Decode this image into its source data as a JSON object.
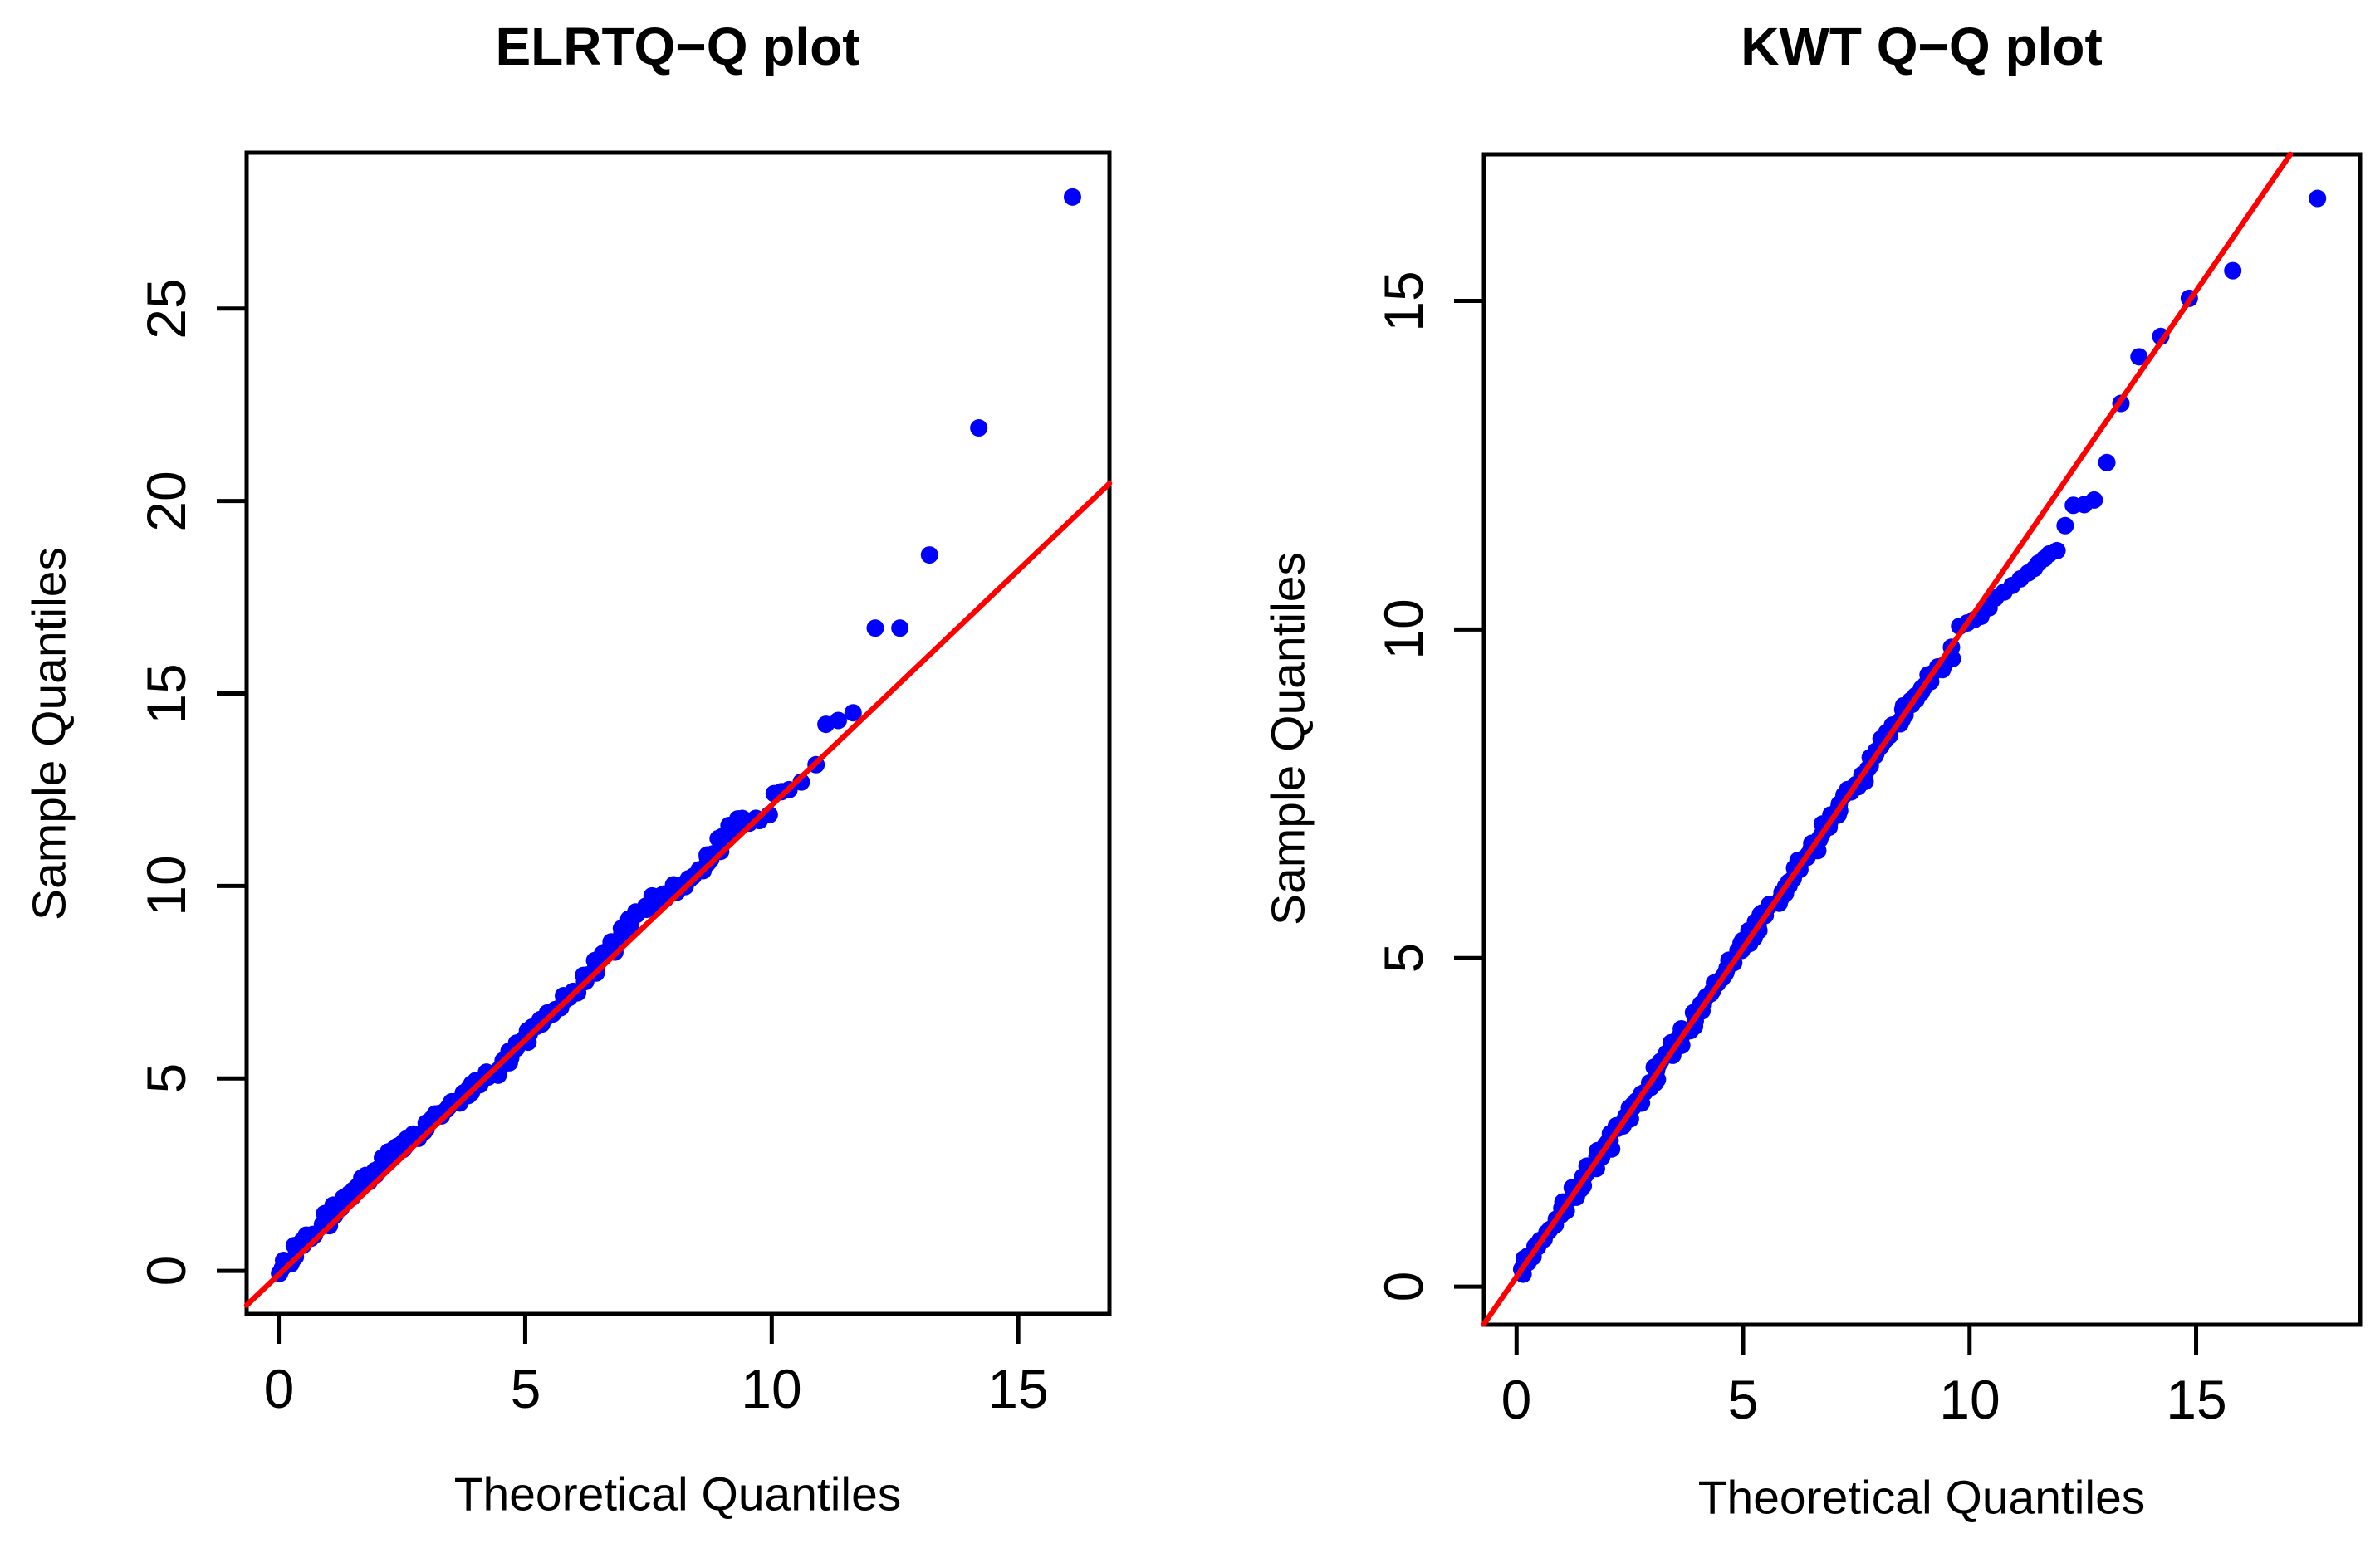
{
  "figure": {
    "background": "#ffffff",
    "point_color": "#0000ff",
    "ref_line_color": "#ff0000",
    "axis_color": "#000000"
  },
  "chart_data": [
    {
      "type": "scatter",
      "title": "ELRTQ−Q plot",
      "xlabel": "Theoretical Quantiles",
      "ylabel": "Sample Quantiles",
      "xlim": [
        -0.65,
        16.85
      ],
      "ylim": [
        -1.12,
        29.05
      ],
      "x_ticks": [
        0,
        5,
        10,
        15
      ],
      "y_ticks": [
        0,
        5,
        10,
        15,
        20,
        25
      ],
      "grid": false,
      "legend": null,
      "ref_line": {
        "slope": 1.22,
        "intercept": -0.1
      },
      "band_points": [
        [
          0.02,
          0.05
        ],
        [
          0.25,
          0.38
        ],
        [
          0.5,
          0.71
        ],
        [
          0.75,
          1.04
        ],
        [
          1.0,
          1.37
        ],
        [
          1.25,
          1.7
        ],
        [
          1.5,
          2.03
        ],
        [
          1.75,
          2.34
        ],
        [
          2.0,
          2.64
        ],
        [
          2.25,
          2.94
        ],
        [
          2.5,
          3.23
        ],
        [
          2.75,
          3.51
        ],
        [
          3.0,
          3.78
        ],
        [
          3.25,
          4.04
        ],
        [
          3.5,
          4.29
        ],
        [
          3.75,
          4.55
        ],
        [
          4.0,
          4.8
        ],
        [
          4.3,
          5.1
        ],
        [
          4.7,
          5.61
        ],
        [
          5.0,
          6.05
        ],
        [
          5.25,
          6.37
        ],
        [
          5.5,
          6.69
        ],
        [
          5.9,
          7.1
        ],
        [
          6.2,
          7.51
        ],
        [
          6.5,
          7.98
        ],
        [
          6.8,
          8.5
        ],
        [
          7.1,
          8.98
        ],
        [
          7.3,
          9.28
        ],
        [
          7.5,
          9.5
        ],
        [
          7.8,
          9.77
        ],
        [
          8.1,
          9.93
        ],
        [
          8.4,
          10.2
        ],
        [
          8.7,
          10.66
        ],
        [
          9.0,
          11.18
        ],
        [
          9.2,
          11.47
        ],
        [
          9.4,
          11.67
        ],
        [
          9.6,
          11.86
        ]
      ],
      "points": [
        [
          9.75,
          11.7
        ],
        [
          9.95,
          11.85
        ],
        [
          10.05,
          12.4
        ],
        [
          10.2,
          12.45
        ],
        [
          10.35,
          12.5
        ],
        [
          10.6,
          12.7
        ],
        [
          10.9,
          13.15
        ],
        [
          11.1,
          14.2
        ],
        [
          11.35,
          14.3
        ],
        [
          11.65,
          14.5
        ],
        [
          12.1,
          16.7
        ],
        [
          12.6,
          16.7
        ],
        [
          13.2,
          18.6
        ],
        [
          14.2,
          21.9
        ],
        [
          16.1,
          27.9
        ]
      ]
    },
    {
      "type": "scatter",
      "title": "KWT Q−Q plot",
      "xlabel": "Theoretical Quantiles",
      "ylabel": "Sample Quantiles",
      "xlim": [
        -0.72,
        18.62
      ],
      "ylim": [
        -0.58,
        17.23
      ],
      "x_ticks": [
        0,
        5,
        10,
        15
      ],
      "y_ticks": [
        0,
        5,
        10,
        15
      ],
      "grid": false,
      "legend": null,
      "ref_line": {
        "slope": 1.0,
        "intercept": 0.15
      },
      "band_points": [
        [
          0.05,
          0.2
        ],
        [
          0.5,
          0.66
        ],
        [
          1.0,
          1.16
        ],
        [
          1.5,
          1.66
        ],
        [
          2.0,
          2.16
        ],
        [
          2.5,
          2.66
        ],
        [
          3.0,
          3.16
        ],
        [
          3.5,
          3.66
        ],
        [
          4.0,
          4.16
        ],
        [
          4.5,
          4.66
        ],
        [
          5.0,
          5.16
        ],
        [
          5.5,
          5.66
        ],
        [
          6.0,
          6.15
        ],
        [
          6.5,
          6.64
        ],
        [
          7.0,
          7.14
        ],
        [
          7.5,
          7.64
        ],
        [
          8.0,
          8.15
        ],
        [
          8.56,
          8.75
        ],
        [
          9.0,
          9.1
        ],
        [
          9.3,
          9.4
        ],
        [
          9.55,
          9.5
        ]
      ],
      "points": [
        [
          9.6,
          9.73
        ],
        [
          9.78,
          10.05
        ],
        [
          9.95,
          10.1
        ],
        [
          10.1,
          10.15
        ],
        [
          10.25,
          10.2
        ],
        [
          10.43,
          10.33
        ],
        [
          10.57,
          10.48
        ],
        [
          10.76,
          10.57
        ],
        [
          10.94,
          10.67
        ],
        [
          11.12,
          10.77
        ],
        [
          11.29,
          10.86
        ],
        [
          11.43,
          10.93
        ],
        [
          11.52,
          11.01
        ],
        [
          11.65,
          11.08
        ],
        [
          11.76,
          11.15
        ],
        [
          11.93,
          11.2
        ],
        [
          12.11,
          11.58
        ],
        [
          12.29,
          11.89
        ],
        [
          12.53,
          11.9
        ],
        [
          12.75,
          11.97
        ],
        [
          13.03,
          12.54
        ],
        [
          13.34,
          13.44
        ],
        [
          13.74,
          14.15
        ],
        [
          14.22,
          14.46
        ],
        [
          14.85,
          15.04
        ],
        [
          15.81,
          15.46
        ],
        [
          17.68,
          16.56
        ]
      ]
    }
  ]
}
